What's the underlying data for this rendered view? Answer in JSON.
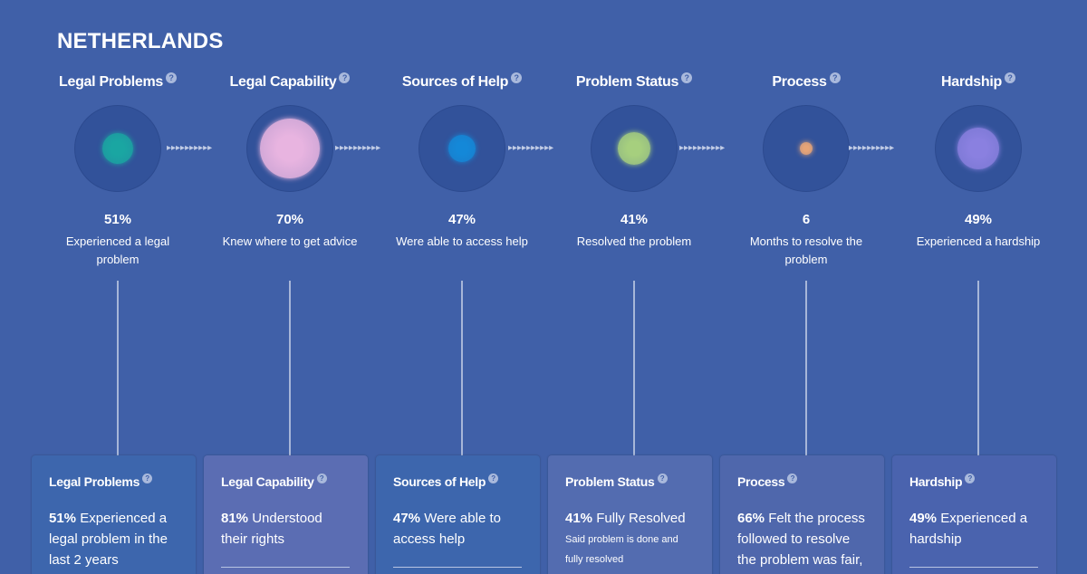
{
  "country": "NETHERLANDS",
  "help_glyph": "?",
  "stages": [
    {
      "title": "Legal Problems",
      "stat": "51%",
      "desc": "Experienced a legal problem",
      "card_title": "Legal Problems",
      "card_pct": "51%",
      "card_text": "Experienced a legal problem in the last 2 years",
      "card_note": "",
      "dot_color": "#1aa6a2"
    },
    {
      "title": "Legal Capability",
      "stat": "70%",
      "desc": "Knew where to get advice",
      "card_title": "Legal Capability",
      "card_pct": "81%",
      "card_text": "Understood their rights",
      "card_note": "",
      "dot_color": "#e8b4e0"
    },
    {
      "title": "Sources of Help",
      "stat": "47%",
      "desc": "Were able to access help",
      "card_title": "Sources of Help",
      "card_pct": "47%",
      "card_text": "Were able to access help",
      "card_note": "",
      "dot_color": "#1488d8"
    },
    {
      "title": "Problem Status",
      "stat": "41%",
      "desc": "Resolved the problem",
      "card_title": "Problem Status",
      "card_pct": "41%",
      "card_text": "Fully Resolved",
      "card_note": "Said problem is done and fully resolved",
      "dot_color": "#a6cf7e"
    },
    {
      "title": "Process",
      "stat": "6",
      "desc": "Months to resolve the problem",
      "card_title": "Process",
      "card_pct": "66%",
      "card_text": "Felt the process followed to resolve the problem was fair,",
      "card_note": "",
      "dot_color": "#e6a477"
    },
    {
      "title": "Hardship",
      "stat": "49%",
      "desc": "Experienced a hardship",
      "card_title": "Hardship",
      "card_pct": "49%",
      "card_text": "Experienced a hardship",
      "card_note": "",
      "dot_color": "#8a80e0"
    }
  ],
  "connector_glyphs": "▸▸▸▸▸▸▸▸▸▸"
}
